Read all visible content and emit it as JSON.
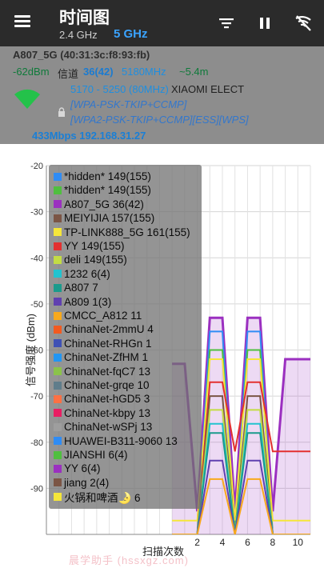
{
  "appbar": {
    "title": "时间图",
    "band_24": "2.4 GHz",
    "band_5": "5 GHz"
  },
  "connection": {
    "ssid": "A807_5G (40:31:3c:f8:93:fb)",
    "rssi": "-62dBm",
    "channel_label": "信道",
    "channel": "36(42)",
    "frequency": "5180MHz",
    "distance": "~5.4m",
    "range": "5170 - 5250 (80MHz)",
    "vendor": "XIAOMI ELECT",
    "security1": "[WPA-PSK-TKIP+CCMP]",
    "security2": "[WPA2-PSK-TKIP+CCMP][ESS][WPS]",
    "speed_ip": "433Mbps 192.168.31.27"
  },
  "colors": {
    "appbar": "#2b2b2b",
    "band_active": "#3aa3ff",
    "info_bg": "#8d8d8d"
  },
  "legend": [
    {
      "label": "*hidden* 149(155)",
      "color": "#2f8cf5"
    },
    {
      "label": "*hidden* 149(155)",
      "color": "#4fbf3f"
    },
    {
      "label": "A807_5G 36(42)",
      "color": "#9b30c0"
    },
    {
      "label": "MEIYIJIA 157(155)",
      "color": "#7b5545"
    },
    {
      "label": "TP-LINK888_5G 161(155)",
      "color": "#f5e63a"
    },
    {
      "label": "YY 149(155)",
      "color": "#e33030"
    },
    {
      "label": "deli 149(155)",
      "color": "#c3dc44"
    },
    {
      "label": "1232 6(4)",
      "color": "#22c3cf"
    },
    {
      "label": "A807 7",
      "color": "#1a9b8c"
    },
    {
      "label": "A809 1(3)",
      "color": "#6040b0"
    },
    {
      "label": "CMCC_A812 11",
      "color": "#f8a91c"
    },
    {
      "label": "ChinaNet-2mmU 4",
      "color": "#f25a20"
    },
    {
      "label": "ChinaNet-RHGn 1",
      "color": "#3f51b5"
    },
    {
      "label": "ChinaNet-ZfHM 1",
      "color": "#2196f3"
    },
    {
      "label": "ChinaNet-fqC7 13",
      "color": "#8bc34a"
    },
    {
      "label": "ChinaNet-grqe 10",
      "color": "#607d8b"
    },
    {
      "label": "ChinaNet-hGD5 3",
      "color": "#ff7043"
    },
    {
      "label": "ChinaNet-kbpy 13",
      "color": "#e91e63"
    },
    {
      "label": "ChinaNet-wSPj 13",
      "color": "#9e9e9e"
    },
    {
      "label": "HUAWEI-B311-9060 13",
      "color": "#2f8cf5"
    },
    {
      "label": "JIANSHI 6(4)",
      "color": "#4fbf3f"
    },
    {
      "label": "YY 6(4)",
      "color": "#9b30c0"
    },
    {
      "label": "jiang 2(4)",
      "color": "#7b5545"
    },
    {
      "label": "火锅和啤酒🌛 6",
      "color": "#f5e63a"
    }
  ],
  "chart_data": {
    "type": "line",
    "xlabel": "扫描次数",
    "ylabel": "信号强度 (dBm)",
    "xlim": [
      -10,
      11
    ],
    "ylim": [
      -100,
      -20
    ],
    "x_ticks": [
      2,
      4,
      6,
      8,
      10
    ],
    "y_ticks": [
      -20,
      -30,
      -40,
      -50,
      -60,
      -70,
      -80,
      -90
    ],
    "grid": true,
    "legend_position": "top-left",
    "series": [
      {
        "name": "A807_5G 36(42)",
        "color": "#9b30c0",
        "fill": true,
        "x": [
          0,
          1,
          2,
          3,
          4,
          5,
          6,
          7,
          8,
          9,
          10,
          11
        ],
        "y": [
          -63,
          -63,
          -95,
          -53,
          -53,
          -95,
          -53,
          -53,
          -95,
          -62,
          -62,
          -62
        ]
      },
      {
        "name": "*hidden* 149(155)",
        "color": "#2f8cf5",
        "x": [
          0,
          1,
          2,
          3,
          4,
          5,
          6,
          7,
          8,
          9,
          10,
          11
        ],
        "y": [
          -100,
          -100,
          -100,
          -56,
          -56,
          -100,
          -56,
          -56,
          -100,
          -100,
          -100,
          -100
        ]
      },
      {
        "name": "*hidden* 149(155)",
        "color": "#4fbf3f",
        "x": [
          0,
          1,
          2,
          3,
          4,
          5,
          6,
          7,
          8,
          9,
          10,
          11
        ],
        "y": [
          -100,
          -100,
          -100,
          -60,
          -60,
          -100,
          -60,
          -60,
          -100,
          -100,
          -100,
          -100
        ]
      },
      {
        "name": "TP-LINK888_5G 161(155)",
        "color": "#f5e63a",
        "x": [
          0,
          1,
          2,
          3,
          4,
          5,
          6,
          7,
          8,
          9,
          10,
          11
        ],
        "y": [
          -97,
          -97,
          -97,
          -62,
          -62,
          -97,
          -62,
          -62,
          -97,
          -97,
          -97,
          -97
        ]
      },
      {
        "name": "YY 149(155)",
        "color": "#e33030",
        "x": [
          0,
          1,
          2,
          3,
          4,
          5,
          6,
          7,
          8,
          9,
          10,
          11
        ],
        "y": [
          -100,
          -100,
          -100,
          -67,
          -67,
          -82,
          -67,
          -67,
          -82,
          -82,
          -82,
          -82
        ]
      },
      {
        "name": "MEIYIJIA 157(155)",
        "color": "#7b5545",
        "x": [
          0,
          1,
          2,
          3,
          4,
          5,
          6,
          7,
          8,
          9,
          10,
          11
        ],
        "y": [
          -100,
          -100,
          -100,
          -70,
          -70,
          -100,
          -70,
          -70,
          -100,
          -100,
          -100,
          -100
        ]
      },
      {
        "name": "deli 149(155)",
        "color": "#c3dc44",
        "x": [
          0,
          1,
          2,
          3,
          4,
          5,
          6,
          7,
          8,
          9,
          10,
          11
        ],
        "y": [
          -100,
          -100,
          -100,
          -73,
          -73,
          -100,
          -73,
          -73,
          -100,
          -100,
          -100,
          -100
        ]
      },
      {
        "name": "1232 6(4)",
        "color": "#22c3cf",
        "x": [
          0,
          1,
          2,
          3,
          4,
          5,
          6,
          7,
          8,
          9,
          10,
          11
        ],
        "y": [
          -100,
          -100,
          -100,
          -76,
          -76,
          -100,
          -76,
          -76,
          -100,
          -100,
          -100,
          -100
        ]
      },
      {
        "name": "A807 7",
        "color": "#1a9b8c",
        "x": [
          0,
          1,
          2,
          3,
          4,
          5,
          6,
          7,
          8,
          9,
          10,
          11
        ],
        "y": [
          -100,
          -100,
          -100,
          -78,
          -78,
          -100,
          -78,
          -78,
          -100,
          -100,
          -100,
          -100
        ]
      },
      {
        "name": "A809 1(3)",
        "color": "#6040b0",
        "x": [
          0,
          1,
          2,
          3,
          4,
          5,
          6,
          7,
          8,
          9,
          10,
          11
        ],
        "y": [
          -100,
          -100,
          -100,
          -84,
          -84,
          -100,
          -84,
          -84,
          -100,
          -100,
          -100,
          -100
        ]
      },
      {
        "name": "CMCC_A812 11",
        "color": "#f8a91c",
        "x": [
          0,
          1,
          2,
          3,
          4,
          5,
          6,
          7,
          8,
          9,
          10,
          11
        ],
        "y": [
          -100,
          -100,
          -100,
          -88,
          -88,
          -100,
          -88,
          -88,
          -100,
          -100,
          -100,
          -100
        ]
      }
    ]
  },
  "watermark": "晨学助手 (hssxgz.com)"
}
